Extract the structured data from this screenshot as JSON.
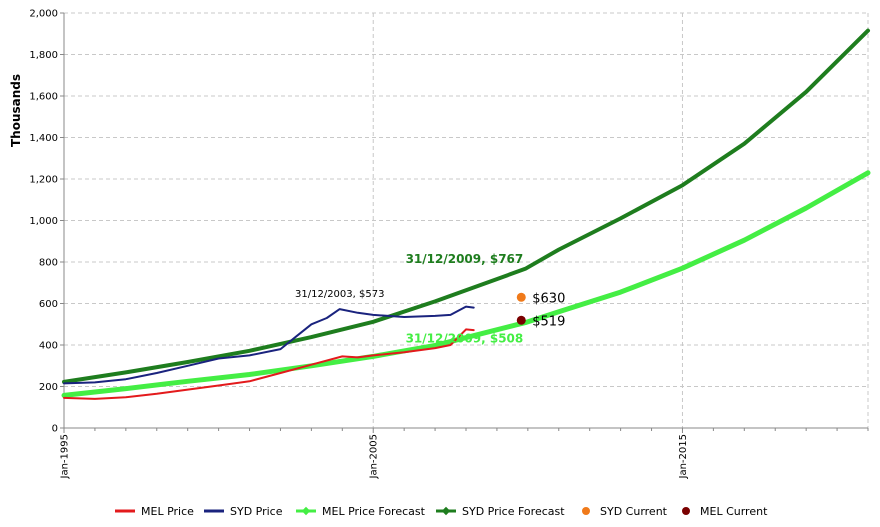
{
  "chart_data": {
    "type": "line",
    "ylabel": "Thousands",
    "ylim": [
      0,
      2000
    ],
    "yticks": [
      "0",
      "200",
      "400",
      "600",
      "800",
      "1,000",
      "1,200",
      "1,400",
      "1,600",
      "1,800",
      "2,000"
    ],
    "xlim": [
      "1995-01",
      "2021-01"
    ],
    "xticks": [
      "Jan-1995",
      "Jan-2005",
      "Jan-2015"
    ],
    "grid": true,
    "legend_position": "bottom",
    "colors": {
      "mel_price": "#e31a1c",
      "syd_price": "#1a237e",
      "mel_forecast": "#44ee44",
      "syd_forecast": "#1e7d1e",
      "syd_current": "#f07a1a",
      "mel_current": "#7a0000",
      "grid": "#c8c8c8",
      "axis": "#888888"
    },
    "series": [
      {
        "name": "MEL Price",
        "x": [
          "1995-01",
          "1996-01",
          "1997-01",
          "1998-01",
          "1999-01",
          "2000-01",
          "2001-01",
          "2002-01",
          "2003-01",
          "2004-01",
          "2004-07",
          "2005-01",
          "2006-01",
          "2007-01",
          "2007-07",
          "2008-01",
          "2008-04"
        ],
        "values": [
          145,
          140,
          148,
          165,
          185,
          205,
          225,
          265,
          305,
          345,
          340,
          350,
          365,
          385,
          400,
          475,
          472
        ]
      },
      {
        "name": "SYD Price",
        "x": [
          "1995-01",
          "1996-01",
          "1997-01",
          "1998-01",
          "1999-01",
          "2000-01",
          "2001-01",
          "2002-01",
          "2002-07",
          "2003-01",
          "2003-07",
          "2003-12",
          "2004-07",
          "2005-01",
          "2006-01",
          "2007-01",
          "2007-07",
          "2008-01",
          "2008-04"
        ],
        "values": [
          215,
          220,
          235,
          265,
          300,
          335,
          350,
          380,
          440,
          500,
          530,
          573,
          555,
          545,
          535,
          540,
          545,
          585,
          580
        ]
      },
      {
        "name": "MEL Price Forecast",
        "x": [
          "1995-01",
          "1997-01",
          "1999-01",
          "2001-01",
          "2003-01",
          "2005-01",
          "2007-01",
          "2009-12",
          "2011-01",
          "2013-01",
          "2015-01",
          "2017-01",
          "2019-01",
          "2021-01"
        ],
        "values": [
          157,
          190,
          225,
          258,
          300,
          345,
          398,
          508,
          560,
          655,
          770,
          905,
          1060,
          1230
        ]
      },
      {
        "name": "SYD Price Forecast",
        "x": [
          "1995-01",
          "1997-01",
          "1999-01",
          "2001-01",
          "2003-01",
          "2005-01",
          "2007-01",
          "2009-12",
          "2011-01",
          "2013-01",
          "2015-01",
          "2017-01",
          "2019-01",
          "2021-01"
        ],
        "values": [
          222,
          268,
          318,
          372,
          438,
          512,
          610,
          767,
          860,
          1010,
          1170,
          1370,
          1620,
          1915
        ]
      },
      {
        "name": "SYD Current",
        "x": [
          "2009-12"
        ],
        "values": [
          630
        ]
      },
      {
        "name": "MEL Current",
        "x": [
          "2009-12"
        ],
        "values": [
          519
        ]
      }
    ],
    "annotations": [
      {
        "text": "31/12/2003, $573",
        "x": "2003-12",
        "y": 573
      },
      {
        "text": "31/12/2009, $767",
        "x": "2009-12",
        "y": 767
      },
      {
        "text": "31/12/2009, $508",
        "x": "2009-12",
        "y": 508
      },
      {
        "text": "$630",
        "x": "2009-12",
        "y": 630
      },
      {
        "text": "$519",
        "x": "2009-12",
        "y": 519
      }
    ]
  }
}
